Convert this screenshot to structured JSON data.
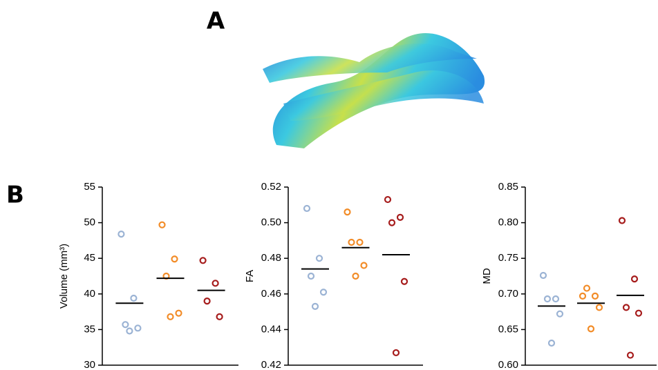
{
  "panel_labels": [
    "A",
    "B"
  ],
  "chart_data": [
    {
      "type": "strip",
      "y_label": "Volume (mm³)",
      "ylim": [
        30,
        55
      ],
      "yticks": [
        30,
        35,
        40,
        45,
        50,
        55
      ],
      "series": [
        {
          "color": "#9bb3d4",
          "values": [
            48.4,
            39.4,
            35.7,
            35.2,
            34.8
          ],
          "mean": 38.7
        },
        {
          "color": "#f28c28",
          "values": [
            49.7,
            44.9,
            42.5,
            37.3,
            36.8
          ],
          "mean": 42.2
        },
        {
          "color": "#a61c1c",
          "values": [
            44.7,
            41.5,
            39.0,
            36.8
          ],
          "mean": 40.5
        }
      ]
    },
    {
      "type": "strip",
      "y_label": "FA",
      "ylim": [
        0.42,
        0.52
      ],
      "yticks": [
        0.42,
        0.44,
        0.46,
        0.48,
        {
          "value": 0.5,
          "label": "0.50"
        },
        0.52
      ],
      "series": [
        {
          "color": "#9bb3d4",
          "values": [
            0.508,
            0.48,
            0.47,
            0.461,
            0.453
          ],
          "mean": 0.474
        },
        {
          "color": "#f28c28",
          "values": [
            0.506,
            0.489,
            0.489,
            0.476,
            0.47
          ],
          "mean": 0.486
        },
        {
          "color": "#a61c1c",
          "values": [
            0.513,
            0.503,
            0.5,
            0.467,
            0.427
          ],
          "mean": 0.482
        }
      ]
    },
    {
      "type": "strip",
      "y_label": "MD",
      "ylim": [
        0.6,
        0.85
      ],
      "yticks": [
        {
          "value": 0.6,
          "label": "0.60"
        },
        0.65,
        {
          "value": 0.7,
          "label": "0.70"
        },
        0.75,
        {
          "value": 0.8,
          "label": "0.80"
        },
        0.85
      ],
      "series": [
        {
          "color": "#9bb3d4",
          "values": [
            0.726,
            0.693,
            0.693,
            0.672,
            0.631
          ],
          "mean": 0.683
        },
        {
          "color": "#f28c28",
          "values": [
            0.697,
            0.697,
            0.708,
            0.681,
            0.651
          ],
          "mean": 0.687
        },
        {
          "color": "#a61c1c",
          "values": [
            0.803,
            0.721,
            0.681,
            0.673,
            0.614
          ],
          "mean": 0.698
        }
      ]
    }
  ]
}
